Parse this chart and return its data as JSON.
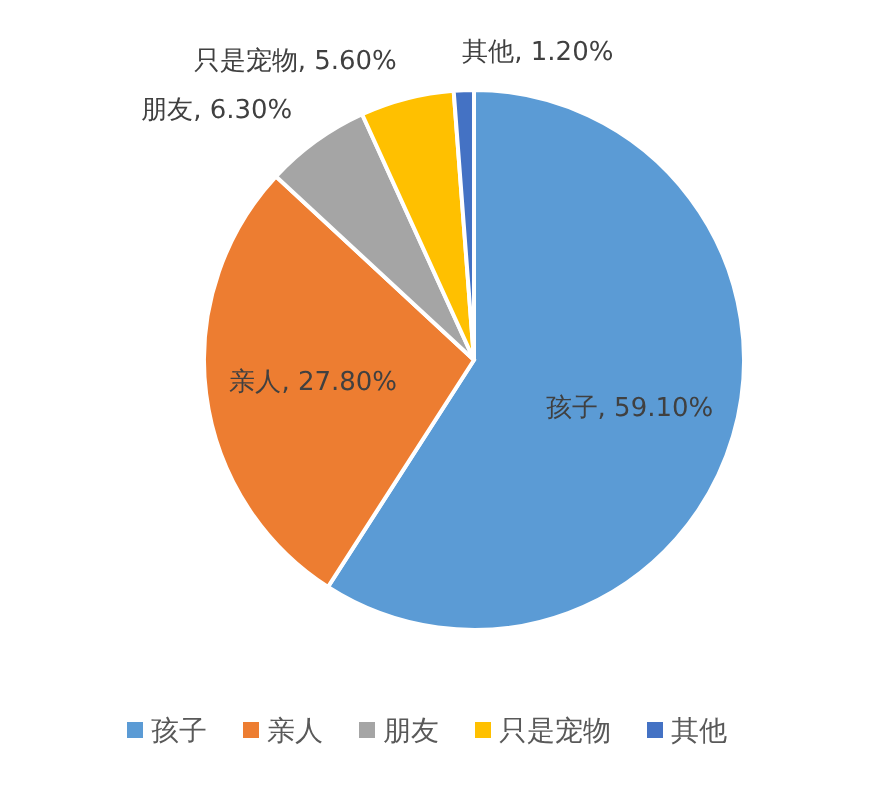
{
  "chart_data": {
    "type": "pie",
    "categories": [
      "孩子",
      "亲人",
      "朋友",
      "只是宠物",
      "其他"
    ],
    "values": [
      59.1,
      27.8,
      6.3,
      5.6,
      1.2
    ],
    "colors": [
      "#5b9bd5",
      "#ed7d31",
      "#a5a5a5",
      "#ffc000",
      "#4472c4"
    ],
    "value_labels": [
      "孩子, 59.10%",
      "亲人, 27.80%",
      "朋友, 6.30%",
      "只是宠物, 5.60%",
      "其他, 1.20%"
    ],
    "legend": "bottom"
  }
}
